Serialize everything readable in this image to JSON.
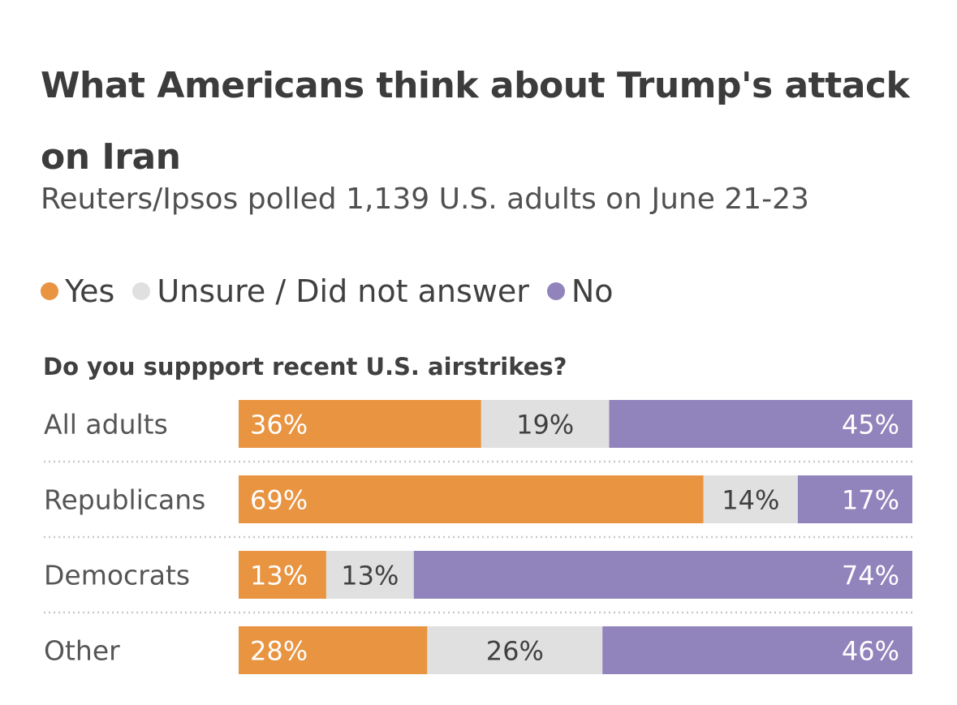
{
  "title": "What Americans think about Trump's attack on Iran",
  "subtitle": "Reuters/Ipsos polled 1,139 U.S. adults on June 21-23",
  "legend": [
    {
      "label": "Yes",
      "color": "#e89440"
    },
    {
      "label": "Unsure / Did not answer",
      "color": "#e0e0e0"
    },
    {
      "label": "No",
      "color": "#9183bb"
    }
  ],
  "chart_data": {
    "type": "bar",
    "orientation": "horizontal",
    "stacked": true,
    "title": "Do you suppport recent U.S. airstrikes?",
    "categories": [
      "All adults",
      "Republicans",
      "Democrats",
      "Other"
    ],
    "series": [
      {
        "name": "Yes",
        "values": [
          36,
          69,
          13,
          28
        ],
        "labels": [
          "36%",
          "69%",
          "13%",
          "28%"
        ],
        "color": "#e89440",
        "label_color": "#ffffff"
      },
      {
        "name": "Unsure / Did not answer",
        "values": [
          19,
          14,
          13,
          26
        ],
        "labels": [
          "19%",
          "14%",
          "13%",
          "26%"
        ],
        "color": "#e0e0e0",
        "label_color": "#404040"
      },
      {
        "name": "No",
        "values": [
          45,
          17,
          74,
          46
        ],
        "labels": [
          "45%",
          "17%",
          "74%",
          "46%"
        ],
        "color": "#9183bb",
        "label_color": "#ffffff"
      }
    ],
    "xlim": [
      0,
      100
    ],
    "legend": "top-left",
    "grid": false
  }
}
